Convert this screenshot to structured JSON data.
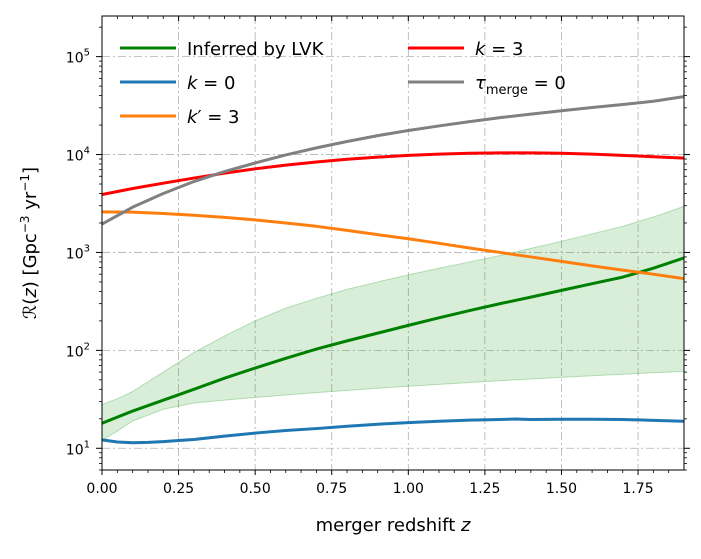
{
  "chart_data": {
    "type": "line",
    "xlabel": "merger redshift z",
    "ylabel": "R(z)  [Gpc^-3 yr^-1]",
    "x_scale": "linear",
    "y_scale": "log",
    "xlim": [
      0.0,
      1.9
    ],
    "ylim": [
      6,
      260000
    ],
    "grid": true,
    "legend_position": "top-left, two columns",
    "x_ticks": [
      0.0,
      0.25,
      0.5,
      0.75,
      1.0,
      1.25,
      1.5,
      1.75
    ],
    "x_tick_labels": [
      "0.00",
      "0.25",
      "0.50",
      "0.75",
      "1.00",
      "1.25",
      "1.50",
      "1.75"
    ],
    "y_ticks": [
      10,
      100,
      1000,
      10000,
      100000
    ],
    "y_tick_labels": [
      {
        "base": "10",
        "exp": "1"
      },
      {
        "base": "10",
        "exp": "2"
      },
      {
        "base": "10",
        "exp": "3"
      },
      {
        "base": "10",
        "exp": "4"
      },
      {
        "base": "10",
        "exp": "5"
      }
    ],
    "band": {
      "series": "Inferred by LVK",
      "color": "#2ca02c",
      "opacity": 0.18,
      "x": [
        0.0,
        0.05,
        0.1,
        0.2,
        0.3,
        0.4,
        0.5,
        0.6,
        0.7,
        0.8,
        0.9,
        1.0,
        1.1,
        1.2,
        1.3,
        1.4,
        1.5,
        1.6,
        1.7,
        1.8,
        1.9
      ],
      "lower": [
        12,
        15,
        19,
        25,
        29,
        31,
        33,
        35,
        37,
        39,
        41,
        43,
        45,
        47,
        49,
        51,
        53,
        55,
        57,
        59,
        61
      ],
      "upper": [
        28,
        32,
        38,
        60,
        95,
        140,
        200,
        270,
        340,
        420,
        500,
        590,
        690,
        800,
        930,
        1100,
        1300,
        1550,
        1850,
        2300,
        2950
      ]
    },
    "series": [
      {
        "name": "Inferred by LVK",
        "color": "#008000",
        "x": [
          0.0,
          0.1,
          0.2,
          0.3,
          0.4,
          0.5,
          0.6,
          0.7,
          0.8,
          0.9,
          1.0,
          1.1,
          1.2,
          1.3,
          1.4,
          1.5,
          1.6,
          1.7,
          1.8,
          1.9
        ],
        "y": [
          18,
          24,
          31,
          40,
          52,
          66,
          83,
          103,
          125,
          150,
          180,
          215,
          255,
          300,
          350,
          410,
          480,
          560,
          690,
          880
        ]
      },
      {
        "name": "k=0",
        "color": "#1f77b4",
        "x": [
          0.0,
          0.05,
          0.1,
          0.15,
          0.2,
          0.25,
          0.3,
          0.4,
          0.5,
          0.6,
          0.7,
          0.8,
          0.9,
          1.0,
          1.1,
          1.2,
          1.3,
          1.35,
          1.4,
          1.5,
          1.6,
          1.7,
          1.8,
          1.9
        ],
        "y": [
          12.2,
          11.6,
          11.4,
          11.5,
          11.7,
          12.0,
          12.3,
          13.3,
          14.3,
          15.2,
          15.9,
          16.8,
          17.6,
          18.3,
          18.9,
          19.4,
          19.7,
          19.9,
          19.7,
          19.8,
          19.8,
          19.7,
          19.3,
          18.9
        ]
      },
      {
        "name": "k'=3",
        "color": "#ff7f0e",
        "x": [
          0.0,
          0.1,
          0.2,
          0.3,
          0.4,
          0.5,
          0.6,
          0.7,
          0.8,
          0.9,
          1.0,
          1.1,
          1.2,
          1.3,
          1.4,
          1.5,
          1.6,
          1.7,
          1.8,
          1.9
        ],
        "y": [
          2600,
          2580,
          2500,
          2400,
          2280,
          2150,
          2000,
          1850,
          1680,
          1520,
          1380,
          1240,
          1110,
          1000,
          900,
          810,
          730,
          660,
          600,
          540
        ]
      },
      {
        "name": "k=3",
        "color": "#ff0000",
        "x": [
          0.0,
          0.1,
          0.2,
          0.3,
          0.4,
          0.5,
          0.6,
          0.7,
          0.8,
          0.9,
          1.0,
          1.1,
          1.2,
          1.3,
          1.4,
          1.5,
          1.6,
          1.7,
          1.8,
          1.9
        ],
        "y": [
          3900,
          4500,
          5100,
          5750,
          6450,
          7150,
          7800,
          8400,
          8950,
          9400,
          9800,
          10100,
          10300,
          10400,
          10400,
          10300,
          10100,
          9800,
          9500,
          9200
        ]
      },
      {
        "name": "τ_merge=0",
        "color": "#808080",
        "x": [
          0.0,
          0.1,
          0.2,
          0.3,
          0.4,
          0.5,
          0.6,
          0.7,
          0.8,
          0.9,
          1.0,
          1.1,
          1.2,
          1.3,
          1.4,
          1.5,
          1.6,
          1.7,
          1.8,
          1.9
        ],
        "y": [
          1950,
          2900,
          4000,
          5300,
          6700,
          8200,
          9900,
          11700,
          13600,
          15600,
          17600,
          19600,
          21700,
          23800,
          25900,
          28000,
          30200,
          32400,
          35000,
          39000
        ]
      }
    ],
    "legend": [
      {
        "key": "lvk",
        "label": "Inferred by LVK",
        "color": "#008000"
      },
      {
        "key": "k0",
        "label": "k = 0",
        "color": "#1f77b4"
      },
      {
        "key": "kp3",
        "label": "k′ = 3",
        "color": "#ff7f0e"
      },
      {
        "key": "k3",
        "label": "k = 3",
        "color": "#ff0000"
      },
      {
        "key": "tau",
        "label": "τmerge = 0",
        "color": "#808080"
      }
    ]
  }
}
